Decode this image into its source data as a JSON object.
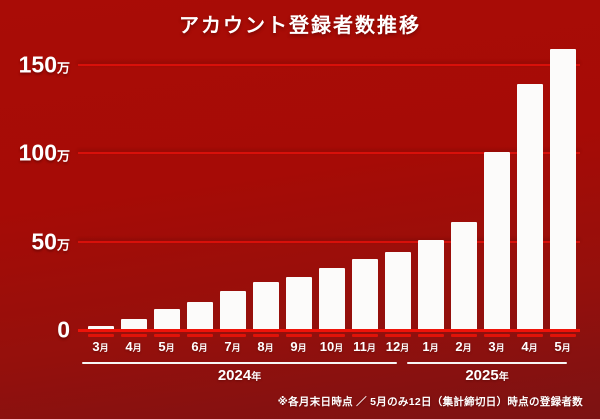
{
  "title": "アカウント登録者数推移",
  "footnote": "※各月末日時点 ／ 5月のみ12日（集計締切日）時点の登録者数",
  "colors": {
    "background_top": "#a90c06",
    "background_bottom": "#7c1213",
    "bar": "#fcfbfa",
    "gridline": "#d8100a",
    "axis_line": "#ee1309",
    "tick_dash": "#e01309",
    "text": "#ffffff"
  },
  "chart_data": {
    "type": "bar",
    "title": "アカウント登録者数推移",
    "xlabel": "",
    "ylabel": "",
    "unit": "万",
    "categories": [
      "3月",
      "4月",
      "5月",
      "6月",
      "7月",
      "8月",
      "9月",
      "10月",
      "11月",
      "12月",
      "1月",
      "2月",
      "3月",
      "4月",
      "5月"
    ],
    "values": [
      2,
      6,
      12,
      16,
      22,
      27,
      30,
      35,
      40,
      44,
      51,
      61,
      101,
      139,
      159
    ],
    "y_ticks": [
      {
        "label": "0",
        "value": 0
      },
      {
        "label": "50万",
        "value": 50
      },
      {
        "label": "100万",
        "value": 100
      },
      {
        "label": "150万",
        "value": 150
      }
    ],
    "ylim": [
      0,
      164
    ],
    "grid": true,
    "legend": "none",
    "year_groups": [
      {
        "label": "2024年",
        "start_index": 0,
        "end_index": 9
      },
      {
        "label": "2025年",
        "start_index": 10,
        "end_index": 14
      }
    ]
  }
}
